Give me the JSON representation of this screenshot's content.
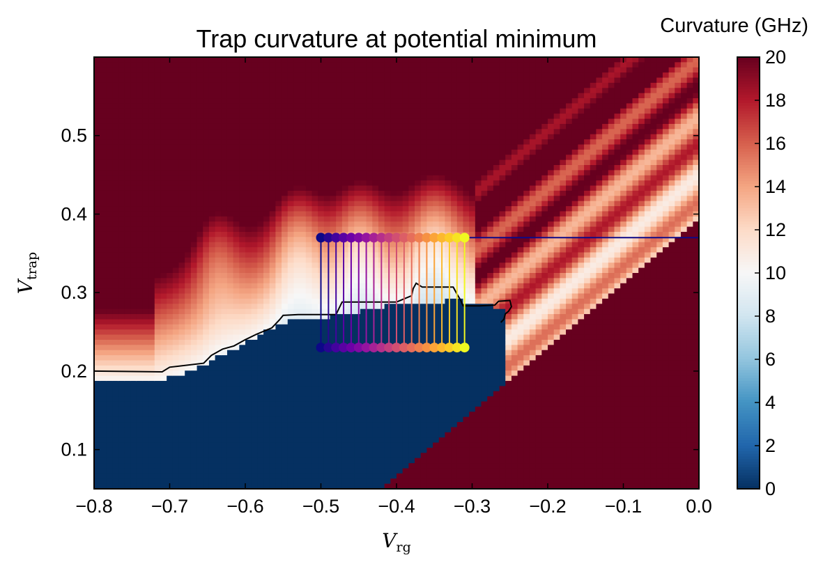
{
  "chart_data": {
    "type": "heatmap",
    "title": "Trap curvature at potential minimum",
    "xlabel": {
      "symbol": "V",
      "subscript": "rg"
    },
    "ylabel": {
      "symbol": "V",
      "subscript": "trap"
    },
    "xlim": [
      -0.8,
      0.0
    ],
    "ylim": [
      0.05,
      0.6
    ],
    "x_ticks": [
      -0.8,
      -0.7,
      -0.6,
      -0.5,
      -0.4,
      -0.3,
      -0.2,
      -0.1,
      0.0
    ],
    "x_tick_labels": [
      "−0.8",
      "−0.7",
      "−0.6",
      "−0.5",
      "−0.4",
      "−0.3",
      "−0.2",
      "−0.1",
      "0.0"
    ],
    "y_ticks": [
      0.1,
      0.2,
      0.3,
      0.4,
      0.5
    ],
    "y_tick_labels": [
      "0.1",
      "0.2",
      "0.3",
      "0.4",
      "0.5"
    ],
    "grid": false,
    "colorbar": {
      "title": "Curvature (GHz)",
      "min": 0,
      "max": 20,
      "ticks": [
        0,
        2,
        4,
        6,
        8,
        10,
        12,
        14,
        16,
        18,
        20
      ],
      "tick_labels": [
        "0",
        "2",
        "4",
        "6",
        "8",
        "10",
        "12",
        "14",
        "16",
        "18",
        "20"
      ],
      "colormap": "RdBu_r"
    },
    "contour": [
      [
        -0.8,
        0.2
      ],
      [
        -0.71,
        0.199
      ],
      [
        -0.7,
        0.205
      ],
      [
        -0.655,
        0.21
      ],
      [
        -0.645,
        0.22
      ],
      [
        -0.63,
        0.228
      ],
      [
        -0.615,
        0.232
      ],
      [
        -0.6,
        0.24
      ],
      [
        -0.585,
        0.247
      ],
      [
        -0.565,
        0.255
      ],
      [
        -0.555,
        0.265
      ],
      [
        -0.55,
        0.271
      ],
      [
        -0.53,
        0.272
      ],
      [
        -0.5,
        0.272
      ],
      [
        -0.48,
        0.272
      ],
      [
        -0.475,
        0.282
      ],
      [
        -0.472,
        0.288
      ],
      [
        -0.44,
        0.288
      ],
      [
        -0.42,
        0.288
      ],
      [
        -0.4,
        0.288
      ],
      [
        -0.39,
        0.292
      ],
      [
        -0.38,
        0.296
      ],
      [
        -0.378,
        0.305
      ],
      [
        -0.374,
        0.312
      ],
      [
        -0.366,
        0.307
      ],
      [
        -0.34,
        0.307
      ],
      [
        -0.325,
        0.307
      ],
      [
        -0.32,
        0.298
      ],
      [
        -0.315,
        0.29
      ],
      [
        -0.312,
        0.283
      ],
      [
        -0.29,
        0.283
      ],
      [
        -0.27,
        0.284
      ],
      [
        -0.265,
        0.289
      ],
      [
        -0.25,
        0.29
      ],
      [
        -0.248,
        0.282
      ],
      [
        -0.252,
        0.276
      ],
      [
        -0.256,
        0.273
      ],
      [
        -0.258,
        0.266
      ],
      [
        -0.262,
        0.262
      ]
    ],
    "sweep": {
      "x_start": -0.5,
      "x_end": -0.31,
      "count": 20,
      "y_top": 0.37,
      "y_bottom": 0.23,
      "tail_x_end": 0.0,
      "colormap": "plasma"
    }
  }
}
